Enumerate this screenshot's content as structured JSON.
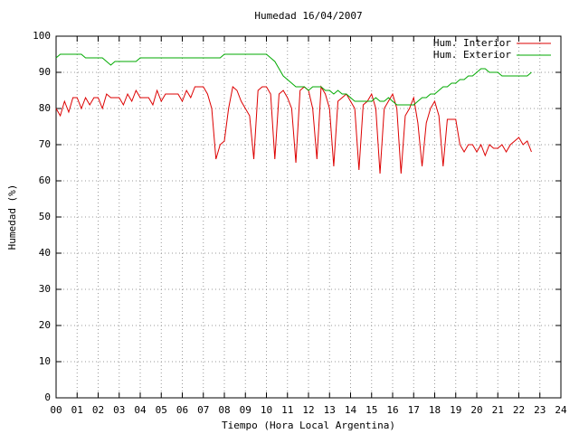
{
  "chart_data": {
    "type": "line",
    "title": "Humedad 16/04/2007",
    "x_label": "Tiempo (Hora Local Argentina)",
    "y_label": "Humedad (%)",
    "x": [
      0,
      0.2,
      0.4,
      0.6,
      0.8,
      1,
      1.2,
      1.4,
      1.6,
      1.8,
      2,
      2.2,
      2.4,
      2.6,
      2.8,
      3,
      3.2,
      3.4,
      3.6,
      3.8,
      4,
      4.2,
      4.4,
      4.6,
      4.8,
      5,
      5.2,
      5.4,
      5.6,
      5.8,
      6,
      6.2,
      6.4,
      6.6,
      6.8,
      7,
      7.2,
      7.4,
      7.6,
      7.8,
      8,
      8.2,
      8.4,
      8.6,
      8.8,
      9,
      9.2,
      9.4,
      9.6,
      9.8,
      10,
      10.2,
      10.4,
      10.6,
      10.8,
      11,
      11.2,
      11.4,
      11.6,
      11.8,
      12,
      12.2,
      12.4,
      12.6,
      12.8,
      13,
      13.2,
      13.4,
      13.6,
      13.8,
      14,
      14.2,
      14.4,
      14.6,
      14.8,
      15,
      15.2,
      15.4,
      15.6,
      15.8,
      16,
      16.2,
      16.4,
      16.6,
      16.8,
      17,
      17.2,
      17.4,
      17.6,
      17.8,
      18,
      18.2,
      18.4,
      18.6,
      18.8,
      19,
      19.2,
      19.4,
      19.6,
      19.8,
      20,
      20.2,
      20.4,
      20.6,
      20.8,
      21,
      21.2,
      21.4,
      21.6,
      21.8,
      22,
      22.2,
      22.4,
      22.6
    ],
    "series": [
      {
        "name": "Hum. Interior",
        "color": "#dd0000",
        "values": [
          80,
          78,
          82,
          79,
          83,
          83,
          80,
          83,
          81,
          83,
          83,
          80,
          84,
          83,
          83,
          83,
          81,
          84,
          82,
          85,
          83,
          83,
          83,
          81,
          85,
          82,
          84,
          84,
          84,
          84,
          82,
          85,
          83,
          86,
          86,
          86,
          84,
          80,
          66,
          70,
          71,
          80,
          86,
          85,
          82,
          80,
          78,
          66,
          85,
          86,
          86,
          84,
          66,
          84,
          85,
          83,
          80,
          65,
          85,
          86,
          85,
          80,
          66,
          86,
          84,
          80,
          64,
          82,
          83,
          84,
          82,
          80,
          63,
          81,
          82,
          84,
          80,
          62,
          80,
          82,
          84,
          80,
          62,
          78,
          80,
          83,
          76,
          64,
          76,
          80,
          82,
          78,
          64,
          77,
          77,
          77,
          70,
          68,
          70,
          70,
          68,
          70,
          67,
          70,
          69,
          69,
          70,
          68,
          70,
          71,
          72,
          70,
          71,
          68
        ]
      },
      {
        "name": "Hum. Exterior",
        "color": "#00aa00",
        "values": [
          94,
          95,
          95,
          95,
          95,
          95,
          95,
          94,
          94,
          94,
          94,
          94,
          93,
          92,
          93,
          93,
          93,
          93,
          93,
          93,
          94,
          94,
          94,
          94,
          94,
          94,
          94,
          94,
          94,
          94,
          94,
          94,
          94,
          94,
          94,
          94,
          94,
          94,
          94,
          94,
          95,
          95,
          95,
          95,
          95,
          95,
          95,
          95,
          95,
          95,
          95,
          94,
          93,
          91,
          89,
          88,
          87,
          86,
          86,
          86,
          85,
          86,
          86,
          86,
          85,
          85,
          84,
          85,
          84,
          84,
          83,
          82,
          82,
          82,
          82,
          82,
          83,
          82,
          82,
          83,
          82,
          81,
          81,
          81,
          81,
          81,
          82,
          83,
          83,
          84,
          84,
          85,
          86,
          86,
          87,
          87,
          88,
          88,
          89,
          89,
          90,
          91,
          91,
          90,
          90,
          90,
          89,
          89,
          89,
          89,
          89,
          89,
          89,
          90
        ]
      }
    ],
    "xlim": [
      0,
      24
    ],
    "xticks": [
      {
        "value": 0,
        "label": "00"
      },
      {
        "value": 1,
        "label": "01"
      },
      {
        "value": 2,
        "label": "02"
      },
      {
        "value": 3,
        "label": "03"
      },
      {
        "value": 4,
        "label": "04"
      },
      {
        "value": 5,
        "label": "05"
      },
      {
        "value": 6,
        "label": "06"
      },
      {
        "value": 7,
        "label": "07"
      },
      {
        "value": 8,
        "label": "08"
      },
      {
        "value": 9,
        "label": "09"
      },
      10,
      11,
      12,
      13,
      14,
      15,
      16,
      17,
      18,
      19,
      20,
      21,
      22,
      23,
      24
    ],
    "ylim": [
      0,
      100
    ],
    "yticks": [
      0,
      10,
      20,
      30,
      40,
      50,
      60,
      70,
      80,
      90,
      100
    ],
    "grid": true,
    "legend": "top-right"
  }
}
